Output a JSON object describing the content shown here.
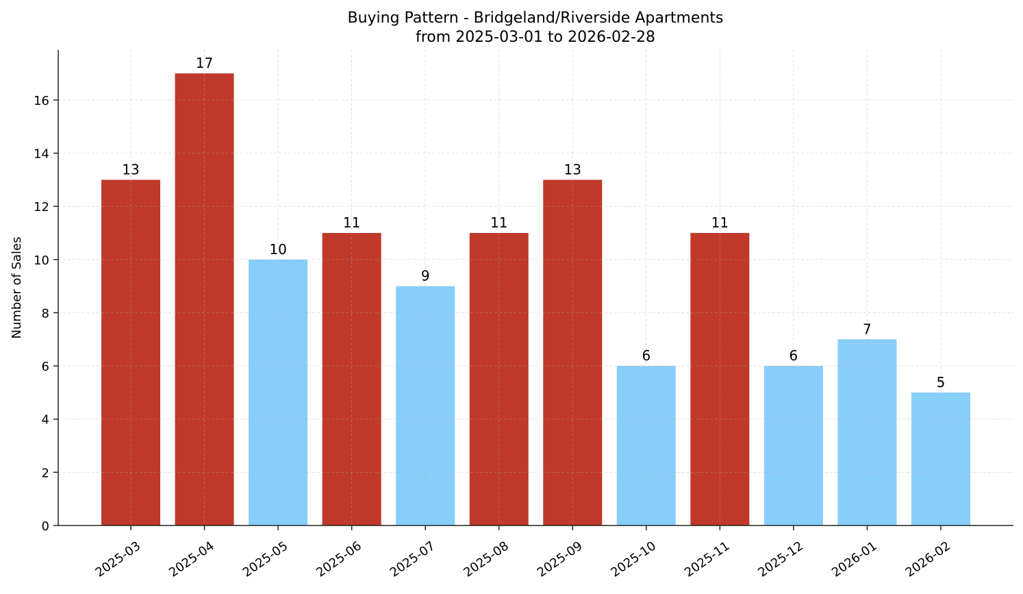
{
  "chart_data": {
    "type": "bar",
    "title": "Buying Pattern - Bridgeland/Riverside Apartments",
    "subtitle": "from 2025-03-01 to 2026-02-28",
    "xlabel": "",
    "ylabel": "Number of Sales",
    "categories": [
      "2025-03",
      "2025-04",
      "2025-05",
      "2025-06",
      "2025-07",
      "2025-08",
      "2025-09",
      "2025-10",
      "2025-11",
      "2025-12",
      "2026-01",
      "2026-02"
    ],
    "values": [
      13,
      17,
      10,
      11,
      9,
      11,
      13,
      6,
      11,
      6,
      7,
      5
    ],
    "bar_colors": [
      "#c0392b",
      "#c0392b",
      "#87cefa",
      "#c0392b",
      "#87cefa",
      "#c0392b",
      "#c0392b",
      "#87cefa",
      "#c0392b",
      "#87cefa",
      "#87cefa",
      "#87cefa"
    ],
    "ylim": [
      0,
      17.88
    ],
    "yticks": [
      0,
      2,
      4,
      6,
      8,
      10,
      12,
      14,
      16
    ],
    "grid": true,
    "data_labels": true
  }
}
